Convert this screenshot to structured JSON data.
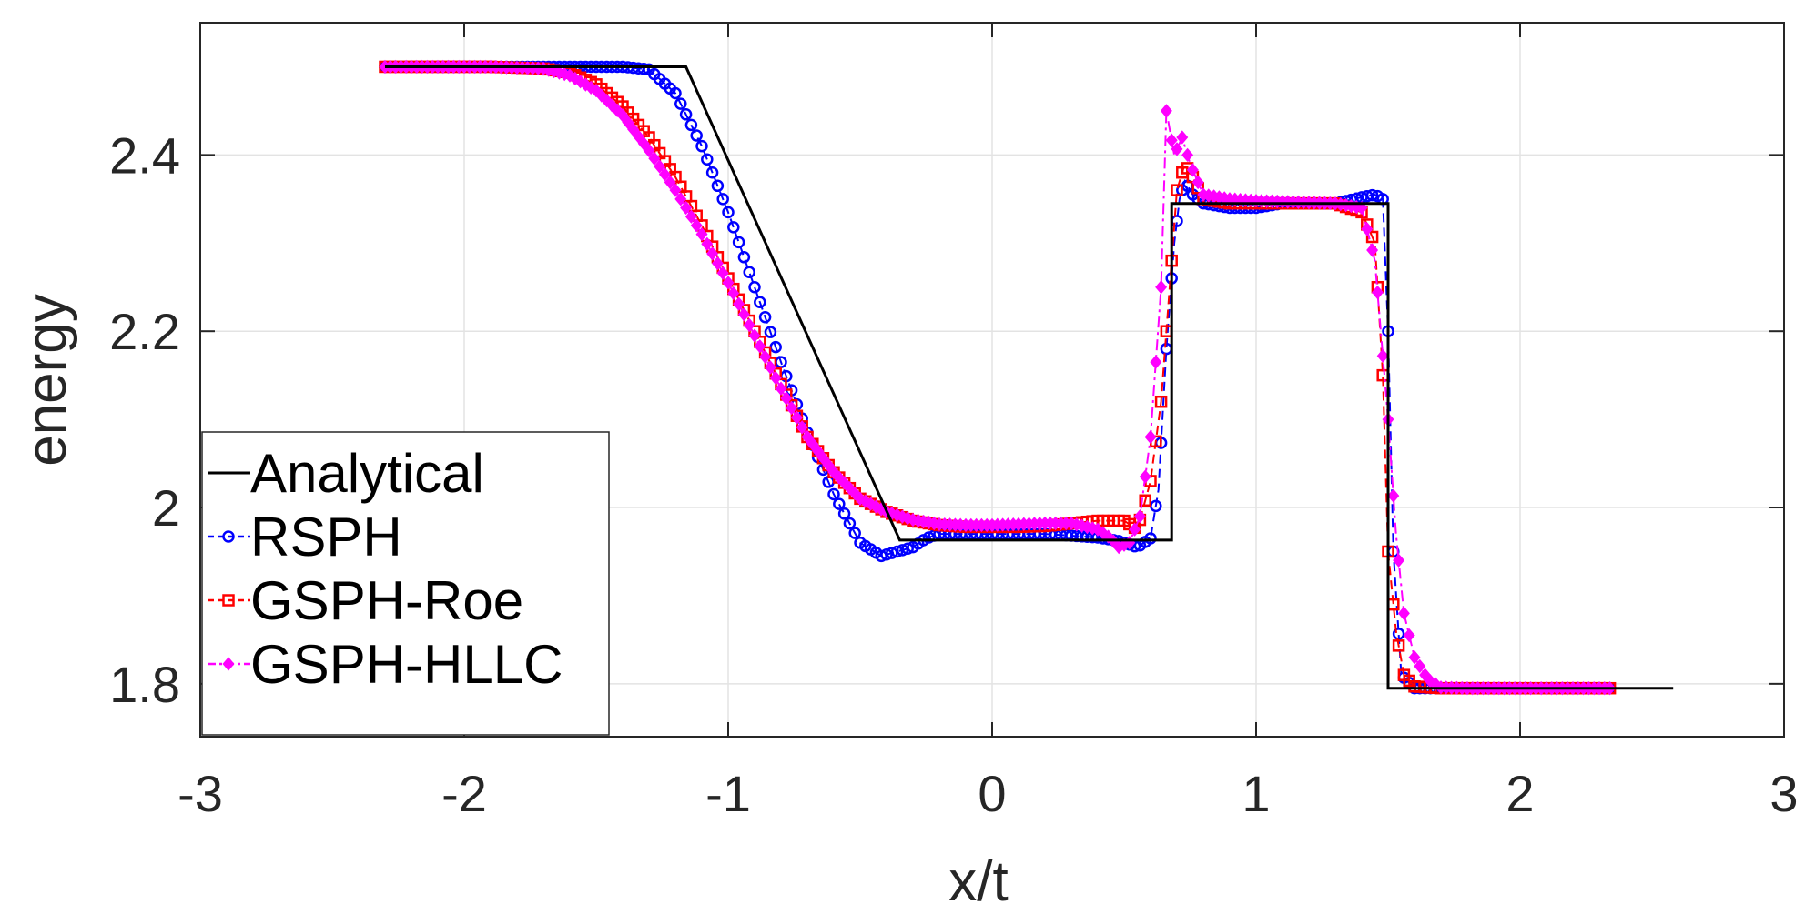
{
  "chart_data": {
    "type": "line",
    "title": "",
    "xlabel": "x/t",
    "ylabel": "energy",
    "xlim": [
      -3,
      3
    ],
    "ylim": [
      1.74,
      2.55
    ],
    "xticks": [
      -3,
      -2,
      -1,
      0,
      1,
      2,
      3
    ],
    "yticks": [
      1.8,
      2.0,
      2.2,
      2.4
    ],
    "xtick_labels": [
      "-3",
      "-2",
      "-1",
      "0",
      "1",
      "2",
      "3"
    ],
    "ytick_labels": [
      "1.8",
      "2",
      "2.2",
      "2.4"
    ],
    "grid": true,
    "legend_position": "bottom-left",
    "series": [
      {
        "name": "Analytical",
        "color": "#000000",
        "style": "solid",
        "marker": "none",
        "x": [
          -2.3,
          -1.16,
          -0.35,
          0.68,
          0.68,
          1.5,
          1.5,
          2.58
        ],
        "y": [
          2.5,
          2.5,
          1.963,
          1.963,
          2.345,
          2.345,
          1.795,
          1.795
        ]
      },
      {
        "name": "RSPH",
        "color": "#0000ff",
        "style": "dashed",
        "marker": "circle",
        "x": [
          -2.3,
          -2.1,
          -1.9,
          -1.7,
          -1.5,
          -1.4,
          -1.3,
          -1.2,
          -1.1,
          -1.0,
          -0.9,
          -0.8,
          -0.7,
          -0.6,
          -0.5,
          -0.42,
          -0.36,
          -0.3,
          -0.25,
          -0.2,
          -0.1,
          0.0,
          0.1,
          0.2,
          0.3,
          0.4,
          0.48,
          0.55,
          0.6,
          0.63,
          0.66,
          0.69,
          0.71,
          0.73,
          0.76,
          0.8,
          0.9,
          1.0,
          1.1,
          1.2,
          1.3,
          1.4,
          1.45,
          1.48,
          1.5,
          1.52,
          1.55,
          1.6,
          1.7,
          1.8,
          2.0,
          2.2,
          2.35
        ],
        "y": [
          2.5,
          2.5,
          2.5,
          2.5,
          2.5,
          2.5,
          2.497,
          2.47,
          2.41,
          2.335,
          2.25,
          2.165,
          2.085,
          2.015,
          1.96,
          1.945,
          1.95,
          1.955,
          1.965,
          1.97,
          1.97,
          1.97,
          1.97,
          1.97,
          1.968,
          1.966,
          1.962,
          1.955,
          1.965,
          2.02,
          2.18,
          2.3,
          2.35,
          2.37,
          2.355,
          2.345,
          2.34,
          2.34,
          2.345,
          2.345,
          2.345,
          2.352,
          2.355,
          2.35,
          2.2,
          1.95,
          1.81,
          1.795,
          1.795,
          1.795,
          1.795,
          1.795,
          1.795
        ]
      },
      {
        "name": "GSPH-Roe",
        "color": "#ff0000",
        "style": "dashed",
        "marker": "square",
        "x": [
          -2.3,
          -2.1,
          -1.9,
          -1.7,
          -1.6,
          -1.5,
          -1.4,
          -1.3,
          -1.2,
          -1.1,
          -1.0,
          -0.9,
          -0.8,
          -0.7,
          -0.6,
          -0.5,
          -0.4,
          -0.3,
          -0.2,
          -0.1,
          0.0,
          0.1,
          0.2,
          0.3,
          0.4,
          0.5,
          0.55,
          0.6,
          0.64,
          0.67,
          0.7,
          0.73,
          0.76,
          0.8,
          0.9,
          1.0,
          1.1,
          1.2,
          1.3,
          1.4,
          1.45,
          1.48,
          1.5,
          1.53,
          1.56,
          1.6,
          1.7,
          1.8,
          2.0,
          2.2,
          2.35
        ],
        "y": [
          2.5,
          2.5,
          2.5,
          2.498,
          2.493,
          2.48,
          2.455,
          2.42,
          2.375,
          2.32,
          2.26,
          2.2,
          2.14,
          2.08,
          2.04,
          2.01,
          1.995,
          1.985,
          1.98,
          1.978,
          1.978,
          1.978,
          1.979,
          1.982,
          1.985,
          1.985,
          1.975,
          2.03,
          2.12,
          2.24,
          2.36,
          2.39,
          2.375,
          2.35,
          2.345,
          2.345,
          2.345,
          2.345,
          2.345,
          2.335,
          2.3,
          2.15,
          1.95,
          1.86,
          1.81,
          1.797,
          1.795,
          1.795,
          1.795,
          1.795,
          1.795
        ]
      },
      {
        "name": "GSPH-HLLC",
        "color": "#ff00ff",
        "style": "dashdot",
        "marker": "diamond",
        "x": [
          -2.3,
          -2.1,
          -1.9,
          -1.7,
          -1.6,
          -1.5,
          -1.4,
          -1.3,
          -1.2,
          -1.1,
          -1.0,
          -0.9,
          -0.8,
          -0.7,
          -0.6,
          -0.5,
          -0.4,
          -0.3,
          -0.2,
          -0.1,
          0.0,
          0.1,
          0.2,
          0.3,
          0.4,
          0.45,
          0.48,
          0.52,
          0.56,
          0.6,
          0.64,
          0.66,
          0.69,
          0.72,
          0.75,
          0.8,
          0.9,
          1.0,
          1.1,
          1.2,
          1.3,
          1.4,
          1.45,
          1.5,
          1.53,
          1.56,
          1.6,
          1.65,
          1.7,
          1.8,
          2.0,
          2.2,
          2.35
        ],
        "y": [
          2.5,
          2.5,
          2.5,
          2.498,
          2.49,
          2.473,
          2.445,
          2.405,
          2.36,
          2.31,
          2.255,
          2.195,
          2.135,
          2.08,
          2.04,
          2.01,
          1.995,
          1.986,
          1.981,
          1.98,
          1.98,
          1.981,
          1.982,
          1.982,
          1.975,
          1.965,
          1.955,
          1.96,
          1.99,
          2.08,
          2.25,
          2.45,
          2.4,
          2.42,
          2.39,
          2.355,
          2.35,
          2.348,
          2.347,
          2.346,
          2.345,
          2.34,
          2.28,
          2.1,
          1.97,
          1.88,
          1.83,
          1.805,
          1.796,
          1.795,
          1.795,
          1.795,
          1.795
        ]
      }
    ]
  }
}
